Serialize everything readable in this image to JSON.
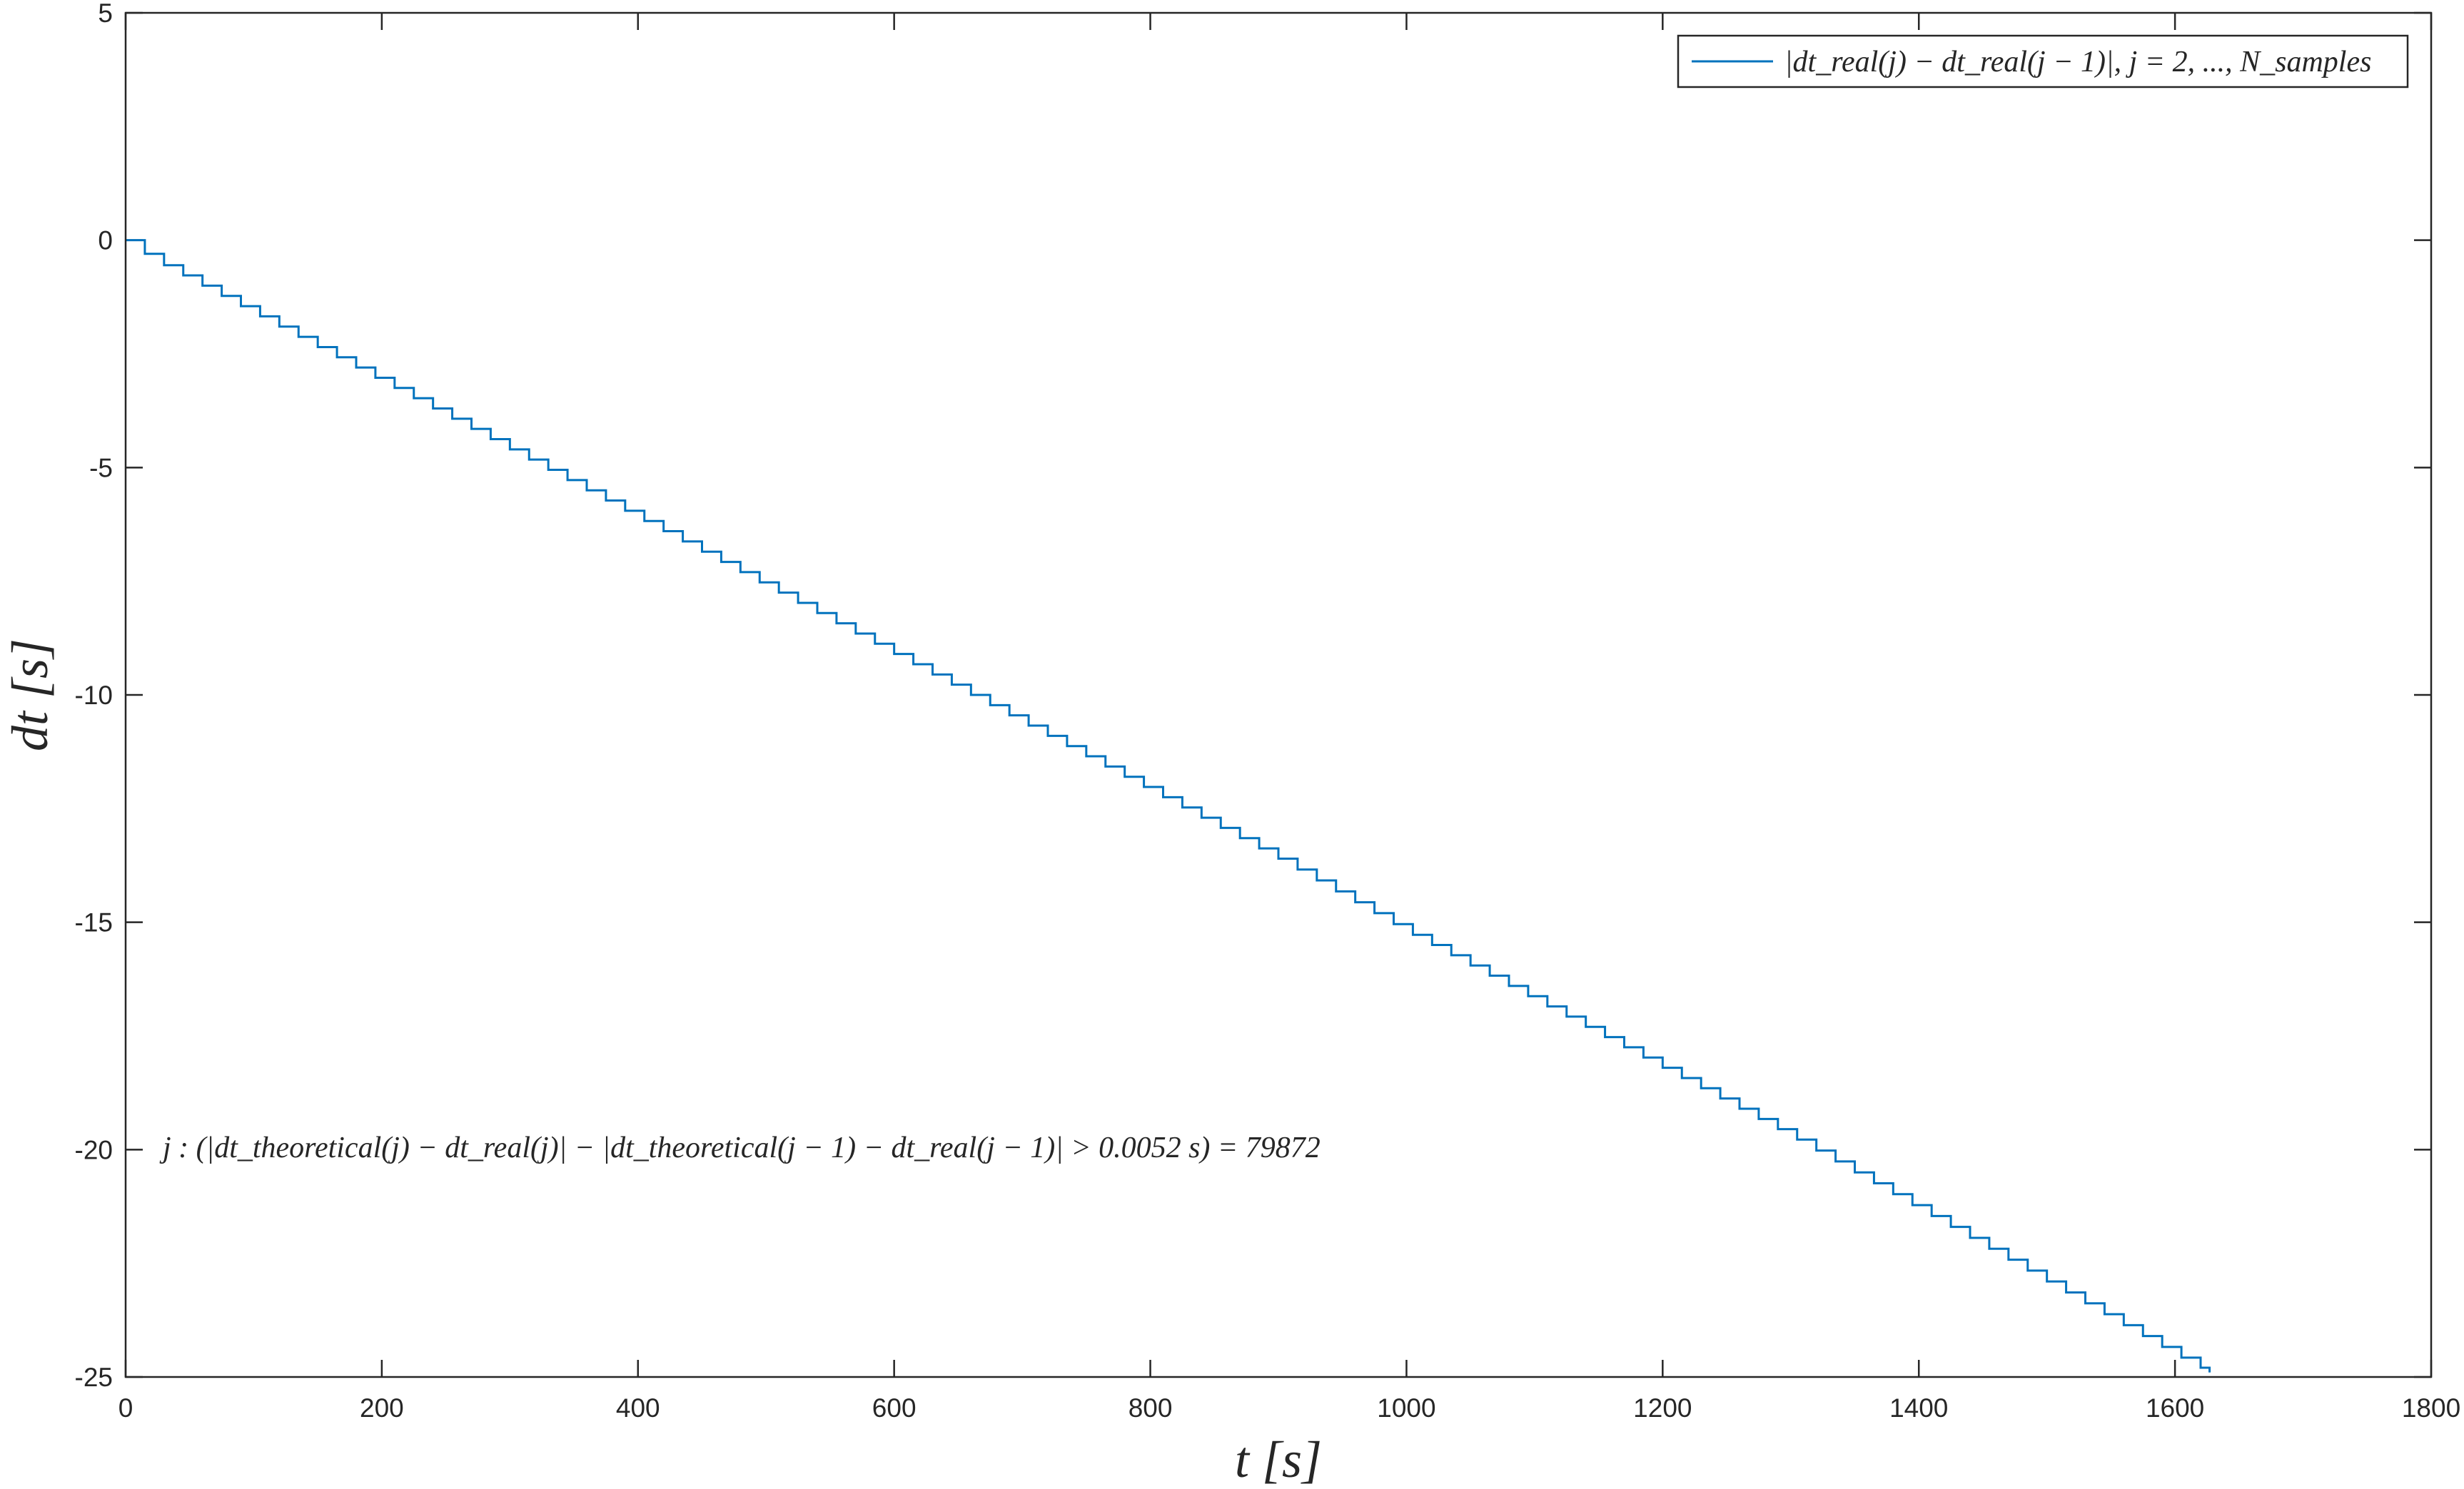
{
  "colors": {
    "series": "#0072BD",
    "axis": "#262626",
    "background": "#ffffff"
  },
  "chart_data": {
    "type": "line",
    "title": "",
    "xlabel": "t  [s]",
    "ylabel": "dt  [s]",
    "xlim": [
      0,
      1800
    ],
    "ylim": [
      -25,
      5
    ],
    "xticks": [
      0,
      200,
      400,
      600,
      800,
      1000,
      1200,
      1400,
      1600,
      1800
    ],
    "yticks": [
      5,
      0,
      -5,
      -10,
      -15,
      -20,
      -25
    ],
    "grid": false,
    "legend_position": "top-right",
    "legend": [
      "|dt_real(j) − dt_real(j − 1)|, j = 2, ..., N_samples"
    ],
    "annotation": "j : (|dt_theoretical(j) − dt_real(j)| − |dt_theoretical(j − 1) − dt_real(j − 1)| > 0.0052 s) = 79872",
    "series": [
      {
        "name": "|dt_real(j) − dt_real(j − 1)|, j = 2, ..., N_samples",
        "description": "staircase decreasing roughly linearly from 0 to about -24.9",
        "x": [
          0,
          20,
          40,
          60,
          80,
          100,
          200,
          300,
          400,
          500,
          600,
          700,
          800,
          900,
          1000,
          1100,
          1200,
          1300,
          1400,
          1500,
          1600,
          1627
        ],
        "y": [
          0,
          -0.4,
          -0.7,
          -1.0,
          -1.3,
          -1.6,
          -3.1,
          -4.6,
          -6.1,
          -7.6,
          -9.1,
          -10.6,
          -12.1,
          -13.6,
          -15.2,
          -16.7,
          -18.2,
          -19.7,
          -21.3,
          -22.9,
          -24.5,
          -24.9
        ],
        "step_interval_s": 15
      }
    ]
  }
}
